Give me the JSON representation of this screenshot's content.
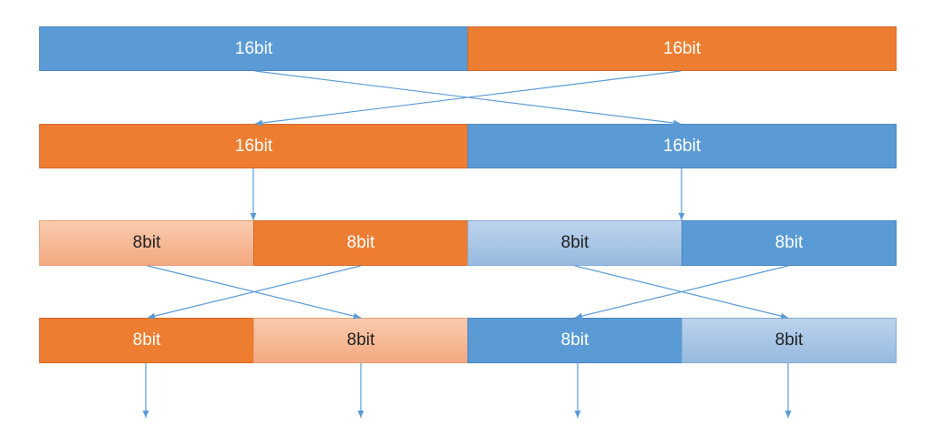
{
  "colors": {
    "blue": "#5b9bd5",
    "orange": "#ed7d31",
    "light_orange": "#f8cbad",
    "light_blue": "#bcd3ed",
    "arrow": "#5b9bd5"
  },
  "rows": [
    {
      "blocks": [
        {
          "label": "16bit",
          "color": "blue"
        },
        {
          "label": "16bit",
          "color": "orange"
        }
      ]
    },
    {
      "blocks": [
        {
          "label": "16bit",
          "color": "orange"
        },
        {
          "label": "16bit",
          "color": "blue"
        }
      ]
    },
    {
      "blocks": [
        {
          "label": "8bit",
          "color": "light_orange"
        },
        {
          "label": "8bit",
          "color": "orange"
        },
        {
          "label": "8bit",
          "color": "light_blue"
        },
        {
          "label": "8bit",
          "color": "blue"
        }
      ]
    },
    {
      "blocks": [
        {
          "label": "8bit",
          "color": "orange"
        },
        {
          "label": "8bit",
          "color": "light_orange"
        },
        {
          "label": "8bit",
          "color": "blue"
        },
        {
          "label": "8bit",
          "color": "light_blue"
        }
      ]
    }
  ]
}
